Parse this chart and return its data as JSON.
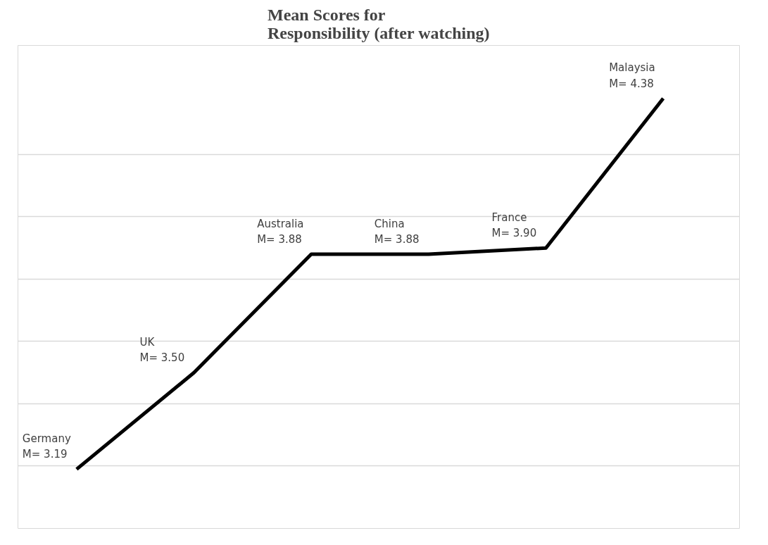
{
  "chart_data": {
    "type": "line",
    "title": "Mean Scores for\nResponsibility (after watching)",
    "categories": [
      null,
      null,
      null,
      null,
      null,
      null
    ],
    "series": [
      {
        "color": "#000000",
        "values": [
          3.19,
          3.5,
          3.88,
          3.88,
          3.9,
          4.38
        ],
        "value_labels": [
          "Germany\nM= 3.19",
          "UK\nM= 3.50",
          "Australia\nM= 3.88",
          "China\nM= 3.88",
          "France\nM= 3.90",
          "Malaysia\nM= 4.38"
        ]
      }
    ],
    "ylim": [
      3.0,
      4.55
    ],
    "yticks": [
      {
        "value": 3.0,
        "label": null
      },
      {
        "value": 3.2,
        "label": null
      },
      {
        "value": 3.4,
        "label": null
      },
      {
        "value": 3.6,
        "label": null
      },
      {
        "value": 3.8,
        "label": null
      },
      {
        "value": 4.0,
        "label": null
      },
      {
        "value": 4.2,
        "label": null
      }
    ],
    "grid": "y",
    "tick_labels": false,
    "marker": "none",
    "line_style": "solid"
  }
}
